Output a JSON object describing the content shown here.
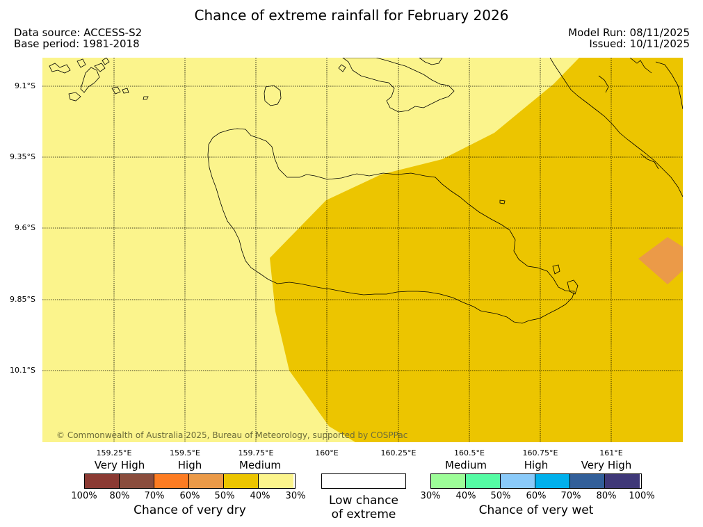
{
  "title": "Chance of extreme rainfall for February 2026",
  "meta": {
    "data_source": "Data source: ACCESS-S2",
    "base_period": "Base period: 1981-2018",
    "model_run": "Model Run: 08/11/2025",
    "issued": "Issued: 10/11/2025"
  },
  "map": {
    "latitude_labels": [
      "9.1°S",
      "9.35°S",
      "9.6°S",
      "9.85°S",
      "10.1°S"
    ],
    "longitude_labels": [
      "159.25°E",
      "159.5°E",
      "159.75°E",
      "160°E",
      "160.25°E",
      "160.5°E",
      "160.75°E",
      "161°E"
    ],
    "copyright": "© Commonwealth of Australia 2025, Bureau of Meteorology, supported by COSPPac",
    "colors": {
      "light_yellow": "#fbf48c",
      "gold": "#ecc500",
      "orange": "#eb9a48",
      "coast": "#000000"
    }
  },
  "legend": {
    "dry": {
      "labels": [
        "Very High",
        "High",
        "Medium"
      ],
      "colors": [
        "#8b3a33",
        "#8a4d3d",
        "#fd7c22",
        "#eb9a48",
        "#ecc500",
        "#fbf48c"
      ],
      "ticks": [
        "100%",
        "80%",
        "70%",
        "60%",
        "50%",
        "40%",
        "30%"
      ],
      "caption": "Chance of very dry"
    },
    "low": {
      "line1": "Low chance",
      "line2": "of extreme"
    },
    "wet": {
      "labels": [
        "Medium",
        "High",
        "Very High"
      ],
      "colors": [
        "#9dfd98",
        "#55fca4",
        "#8acaf9",
        "#00b0ec",
        "#325f99",
        "#3f3878"
      ],
      "ticks": [
        "30%",
        "40%",
        "50%",
        "60%",
        "70%",
        "80%",
        "100%"
      ],
      "caption": "Chance of very wet"
    }
  }
}
